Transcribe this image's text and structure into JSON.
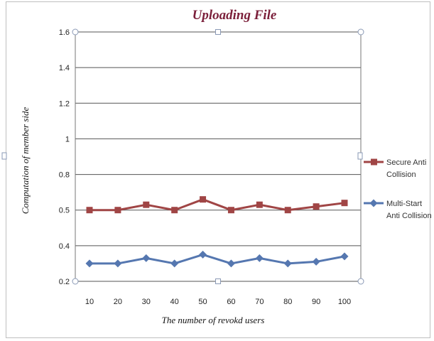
{
  "chart_data": {
    "type": "line",
    "title": "Uploading File",
    "xlabel": "The number of revokd users",
    "ylabel": "Computation of   member side",
    "categories": [
      "10",
      "20",
      "30",
      "40",
      "50",
      "60",
      "70",
      "80",
      "90",
      "100"
    ],
    "y_ticks": [
      "0.2",
      "0.4",
      "0.5",
      "0.8",
      "1",
      "1.2",
      "1.4",
      "1.6"
    ],
    "ylim": [
      0.2,
      1.6
    ],
    "grid": true,
    "legend_position": "right",
    "series": [
      {
        "name_lines": [
          "Secure Anti",
          "Collision"
        ],
        "color": "#a04545",
        "marker": "square",
        "values": [
          0.6,
          0.6,
          0.63,
          0.6,
          0.66,
          0.6,
          0.63,
          0.6,
          0.62,
          0.64
        ]
      },
      {
        "name_lines": [
          "Multi-Start",
          "Anti Collision"
        ],
        "color": "#5577b0",
        "marker": "diamond",
        "values": [
          0.3,
          0.3,
          0.33,
          0.3,
          0.35,
          0.3,
          0.33,
          0.3,
          0.31,
          0.34
        ]
      }
    ]
  }
}
